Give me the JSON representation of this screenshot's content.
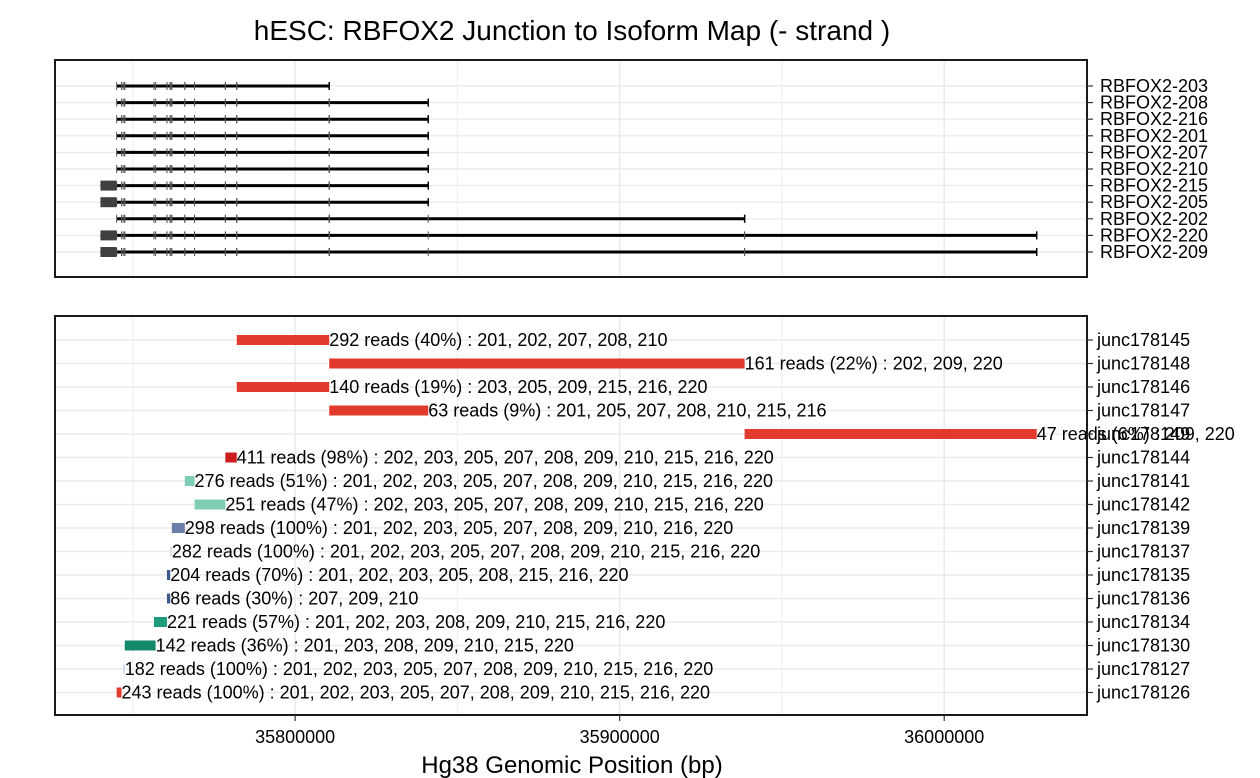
{
  "chart_data": {
    "type": "bar",
    "title": "hESC: RBFOX2 Junction to Isoform Map (- strand )",
    "xlabel": "Hg38 Genomic Position (bp)",
    "x_ticks": [
      "35800000",
      "35900000",
      "36000000"
    ],
    "x_tick_values": [
      35800000,
      35900000,
      36000000
    ],
    "xlim": [
      35726000,
      36044000
    ],
    "grid": true,
    "isoforms": [
      {
        "name": "RBFOX2-203",
        "start": 35745000,
        "end": 35810500,
        "utr_end": null
      },
      {
        "name": "RBFOX2-208",
        "start": 35745000,
        "end": 35841000,
        "utr_end": null
      },
      {
        "name": "RBFOX2-216",
        "start": 35745000,
        "end": 35841000,
        "utr_end": null
      },
      {
        "name": "RBFOX2-201",
        "start": 35745000,
        "end": 35841000,
        "utr_end": null
      },
      {
        "name": "RBFOX2-207",
        "start": 35745000,
        "end": 35841000,
        "utr_end": null
      },
      {
        "name": "RBFOX2-210",
        "start": 35745000,
        "end": 35841000,
        "utr_end": null
      },
      {
        "name": "RBFOX2-215",
        "start": 35740000,
        "end": 35841000,
        "utr_end": 35745000
      },
      {
        "name": "RBFOX2-205",
        "start": 35740000,
        "end": 35841000,
        "utr_end": 35745000
      },
      {
        "name": "RBFOX2-202",
        "start": 35745000,
        "end": 35938500,
        "utr_end": null
      },
      {
        "name": "RBFOX2-220",
        "start": 35740000,
        "end": 36028500,
        "utr_end": 35745000
      },
      {
        "name": "RBFOX2-209",
        "start": 35740000,
        "end": 36028500,
        "utr_end": 35745000
      }
    ],
    "junctions": [
      {
        "name": "junc178145",
        "start": 35782000,
        "end": 35810500,
        "color": "#e23b2e",
        "label": "292 reads (40%) : 201, 202, 207, 208, 210"
      },
      {
        "name": "junc178148",
        "start": 35810500,
        "end": 35938500,
        "color": "#e23b2e",
        "label": "161 reads (22%) : 202, 209, 220"
      },
      {
        "name": "junc178146",
        "start": 35782000,
        "end": 35810500,
        "color": "#e23b2e",
        "label": "140 reads (19%) : 203, 205, 209, 215, 216, 220"
      },
      {
        "name": "junc178147",
        "start": 35810500,
        "end": 35841000,
        "color": "#e23b2e",
        "label": "63 reads (9%) : 201, 205, 207, 208, 210, 215, 216"
      },
      {
        "name": "junc178149",
        "start": 35938500,
        "end": 36028500,
        "color": "#e23b2e",
        "label": "47 reads (6%) : 209, 220"
      },
      {
        "name": "junc178144",
        "start": 35778500,
        "end": 35782000,
        "color": "#cc1b1b",
        "label": "411 reads (98%) : 202, 203, 205, 207, 208, 209, 210, 215, 216, 220"
      },
      {
        "name": "junc178141",
        "start": 35766000,
        "end": 35769000,
        "color": "#7fcdb5",
        "label": "276 reads (51%) : 201, 202, 203, 205, 207, 208, 209, 210, 215, 216, 220"
      },
      {
        "name": "junc178142",
        "start": 35769000,
        "end": 35778500,
        "color": "#7fcdb5",
        "label": "251 reads (47%) : 202, 203, 205, 207, 208, 209, 210, 215, 216, 220"
      },
      {
        "name": "junc178139",
        "start": 35762000,
        "end": 35766000,
        "color": "#6a7ea8",
        "label": "298 reads (100%) : 201, 202, 203, 205, 207, 208, 209, 210, 216, 220"
      },
      {
        "name": "junc178137",
        "start": 35761500,
        "end": 35762000,
        "color": "#cfd8e6",
        "label": "282 reads (100%) : 201, 202, 203, 205, 207, 208, 209, 210, 215, 216, 220"
      },
      {
        "name": "junc178135",
        "start": 35760500,
        "end": 35761500,
        "color": "#3b5b8c",
        "label": "204 reads (70%) : 201, 202, 203, 205, 208, 215, 216, 220"
      },
      {
        "name": "junc178136",
        "start": 35760500,
        "end": 35761500,
        "color": "#3b5b8c",
        "label": "86 reads (30%) : 207, 209, 210"
      },
      {
        "name": "junc178134",
        "start": 35756500,
        "end": 35760500,
        "color": "#1d9c7b",
        "label": "221 reads (57%) : 201, 202, 203, 208, 209, 210, 215, 216, 220"
      },
      {
        "name": "junc178130",
        "start": 35747500,
        "end": 35757000,
        "color": "#12876c",
        "label": "142 reads (36%) : 201, 203, 208, 209, 210, 215, 220"
      },
      {
        "name": "junc178127",
        "start": 35747000,
        "end": 35747500,
        "color": "#cfd8e6",
        "label": "182 reads (100%) : 201, 202, 203, 205, 207, 208, 209, 210, 215, 216, 220"
      },
      {
        "name": "junc178126",
        "start": 35745000,
        "end": 35746500,
        "color": "#e23b2e",
        "label": "243 reads (100%) : 201, 202, 203, 205, 207, 208, 209, 210, 215, 216, 220"
      }
    ]
  }
}
